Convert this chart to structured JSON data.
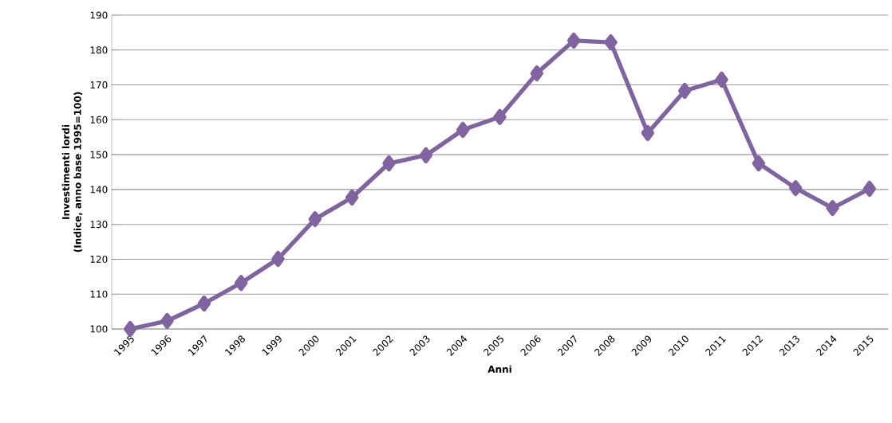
{
  "chart_data": {
    "type": "line",
    "xlabel": "Anni",
    "ylabel": "Investimenti lordi\n(Indice, anno base 1995=100)",
    "categories": [
      "1995",
      "1996",
      "1997",
      "1998",
      "1999",
      "2000",
      "2001",
      "2002",
      "2003",
      "2004",
      "2005",
      "2006",
      "2007",
      "2008",
      "2009",
      "2010",
      "2011",
      "2012",
      "2013",
      "2014",
      "2015"
    ],
    "series": [
      {
        "color": "#8064a2",
        "values": [
          100,
          102.3,
          107.3,
          113.2,
          120.1,
          131.5,
          137.7,
          147.5,
          149.8,
          157.1,
          160.8,
          173.3,
          182.7,
          182.2,
          156.2,
          168.3,
          171.5,
          147.5,
          140.4,
          134.7,
          140.2
        ]
      }
    ],
    "ylim": [
      100,
      190
    ],
    "yticks": [
      100,
      110,
      120,
      130,
      140,
      150,
      160,
      170,
      180,
      190
    ],
    "grid": "y",
    "legend": false,
    "marker": "diamond",
    "line_style": "solid"
  }
}
